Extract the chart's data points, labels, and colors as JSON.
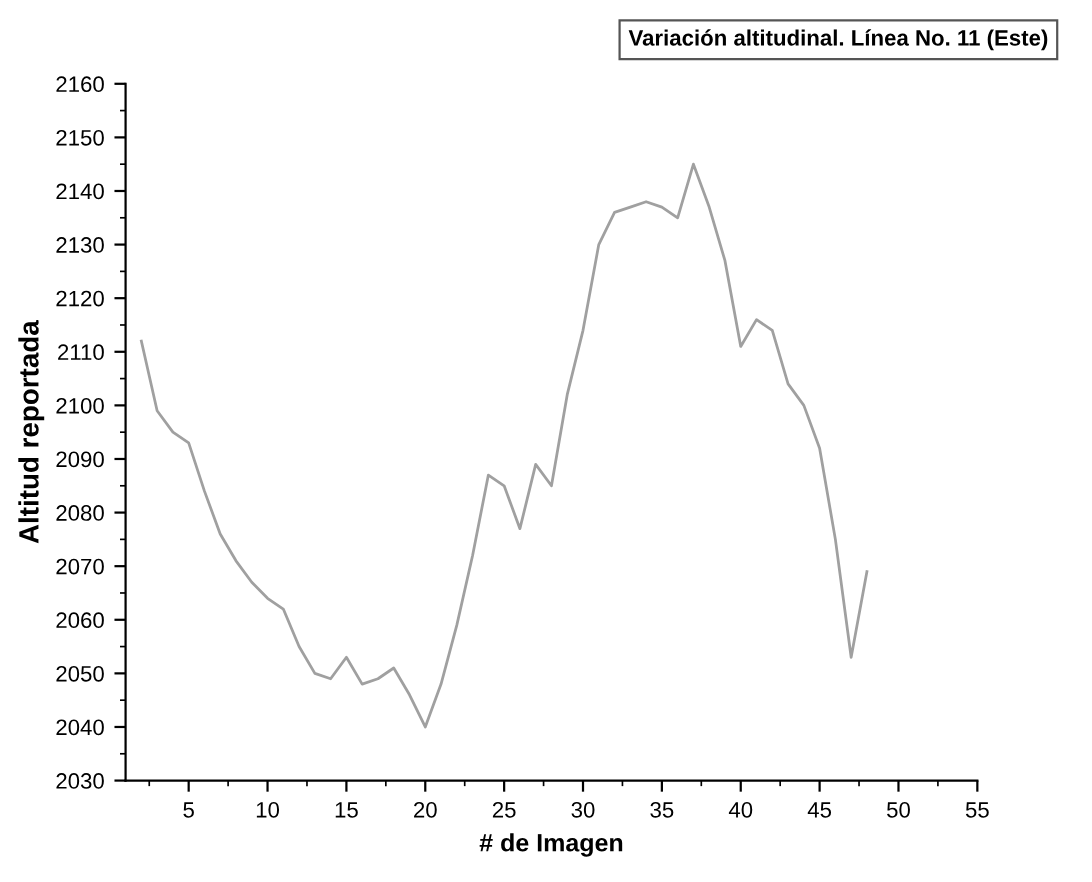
{
  "chart_data": {
    "type": "line",
    "title": "Variación altitudinal. Línea No. 11 (Este)",
    "xlabel": "# de Imagen",
    "ylabel": "Altitud reportada",
    "x": [
      2,
      3,
      4,
      5,
      6,
      7,
      8,
      9,
      10,
      11,
      12,
      13,
      14,
      15,
      16,
      17,
      18,
      19,
      20,
      21,
      22,
      23,
      24,
      25,
      26,
      27,
      28,
      29,
      30,
      31,
      32,
      33,
      34,
      35,
      36,
      37,
      38,
      39,
      40,
      41,
      42,
      43,
      44,
      45,
      46,
      47,
      48
    ],
    "series": [
      {
        "color": "#a0a0a0",
        "values": [
          2112,
          2099,
          2095,
          2093,
          2084,
          2076,
          2071,
          2067,
          2064,
          2062,
          2055,
          2050,
          2049,
          2053,
          2048,
          2049,
          2051,
          2046,
          2040,
          2048,
          2059,
          2072,
          2087,
          2085,
          2077,
          2089,
          2085,
          2102,
          2114,
          2130,
          2136,
          2137,
          2138,
          2137,
          2135,
          2145,
          2137,
          2127,
          2111,
          2116,
          2114,
          2104,
          2100,
          2092,
          2075,
          2053,
          2069
        ]
      }
    ],
    "xlim": [
      1,
      55
    ],
    "xticks": [
      5,
      10,
      15,
      20,
      25,
      30,
      35,
      40,
      45,
      50,
      55
    ],
    "ylim": [
      2030,
      2160
    ],
    "yticks": [
      2030,
      2040,
      2050,
      2060,
      2070,
      2080,
      2090,
      2100,
      2110,
      2120,
      2130,
      2140,
      2150,
      2160
    ],
    "grid": false,
    "legend": false,
    "marker": "none",
    "line_style": "solid"
  }
}
